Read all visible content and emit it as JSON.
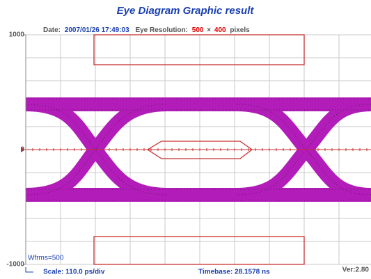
{
  "chart_data": {
    "type": "eye",
    "title": "Eye Diagram Graphic result",
    "info": {
      "date_label": "Date:",
      "date": "2007/01/26 17:49:03",
      "resolution_label": "Eye Resolution:",
      "width": "500",
      "times": "×",
      "height": "400",
      "unit": "pixels"
    },
    "ylim": [
      -1000,
      1000
    ],
    "yticks": [
      1000,
      0,
      -1000
    ],
    "grid": true,
    "waveforms": "Wfrms=500",
    "scale": "Scale: 110.0 ps/div",
    "timebase": "Timebase: 28.1578 ns",
    "version": "Ver:2.80"
  }
}
